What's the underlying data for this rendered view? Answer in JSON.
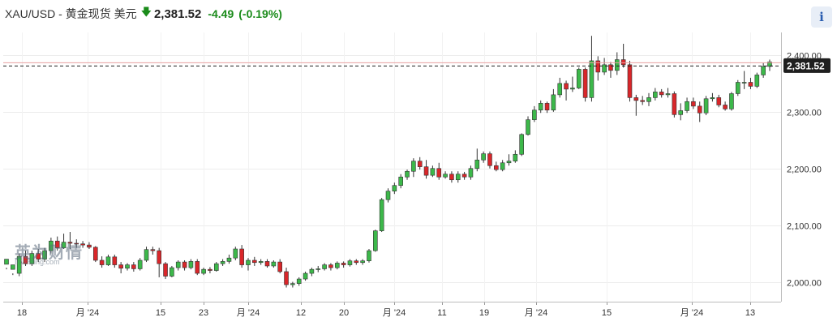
{
  "header": {
    "symbol": "XAU/USD - 黄金现货 美元",
    "arrow": "🡇",
    "price": "2,381.52",
    "change": "-4.49",
    "change_pct": "(-0.19%)",
    "info_icon": "i"
  },
  "watermark": {
    "main": "英为财情",
    "sub": "Investing.com"
  },
  "colors": {
    "up": "#3cb84a",
    "down": "#d9262a",
    "current_line": "#e8a0a0",
    "current_label_bg": "#1f1f1f"
  },
  "chart_data": {
    "type": "candlestick",
    "y_ticks": [
      {
        "value": 2400,
        "label": "2,400.00"
      },
      {
        "value": 2300,
        "label": "2,300.00"
      },
      {
        "value": 2200,
        "label": "2,200.00"
      },
      {
        "value": 2100,
        "label": "2,100.00"
      },
      {
        "value": 2000,
        "label": "2,000.00"
      }
    ],
    "ylim": [
      1965,
      2440
    ],
    "current_price": 2381.52,
    "current_label": "2,381.52",
    "x_ticks": [
      "18",
      "月 '24",
      "15",
      "23",
      "月 '24",
      "12",
      "20",
      "月 '24",
      "11",
      "19",
      "月 '24",
      "15",
      "月 '24",
      "13"
    ],
    "grid": true,
    "candles": [
      [
        2031,
        2040,
        2025,
        2022
      ],
      [
        2022,
        2030,
        2015,
        2012
      ],
      [
        2015,
        2045,
        2050,
        2010
      ],
      [
        2045,
        2032,
        2055,
        2028
      ],
      [
        2032,
        2050,
        2055,
        2028
      ],
      [
        2050,
        2040,
        2058,
        2035
      ],
      [
        2040,
        2055,
        2060,
        2035
      ],
      [
        2055,
        2072,
        2078,
        2050
      ],
      [
        2072,
        2060,
        2080,
        2055
      ],
      [
        2060,
        2070,
        2085,
        2058
      ],
      [
        2070,
        2068,
        2088,
        2058
      ],
      [
        2068,
        2067,
        2075,
        2060
      ],
      [
        2067,
        2065,
        2072,
        2060
      ],
      [
        2065,
        2061,
        2070,
        2058
      ],
      [
        2061,
        2038,
        2063,
        2035
      ],
      [
        2038,
        2030,
        2045,
        2025
      ],
      [
        2030,
        2044,
        2048,
        2028
      ],
      [
        2044,
        2030,
        2048,
        2025
      ],
      [
        2030,
        2024,
        2035,
        2015
      ],
      [
        2024,
        2030,
        2033,
        2020
      ],
      [
        2030,
        2023,
        2035,
        2018
      ],
      [
        2023,
        2038,
        2042,
        2020
      ],
      [
        2038,
        2057,
        2062,
        2035
      ],
      [
        2057,
        2055,
        2062,
        2048
      ],
      [
        2055,
        2032,
        2060,
        2008
      ],
      [
        2032,
        2010,
        2035,
        2005
      ],
      [
        2010,
        2025,
        2028,
        2008
      ],
      [
        2025,
        2035,
        2038,
        2020
      ],
      [
        2035,
        2025,
        2038,
        2020
      ],
      [
        2025,
        2036,
        2040,
        2022
      ],
      [
        2036,
        2015,
        2040,
        2012
      ],
      [
        2015,
        2022,
        2025,
        2012
      ],
      [
        2022,
        2020,
        2026,
        2015
      ],
      [
        2020,
        2032,
        2035,
        2018
      ],
      [
        2032,
        2036,
        2040,
        2028
      ],
      [
        2036,
        2042,
        2048,
        2032
      ],
      [
        2042,
        2058,
        2062,
        2038
      ],
      [
        2058,
        2030,
        2065,
        2025
      ],
      [
        2030,
        2038,
        2042,
        2020
      ],
      [
        2038,
        2034,
        2044,
        2028
      ],
      [
        2034,
        2036,
        2040,
        2030
      ],
      [
        2036,
        2028,
        2040,
        2025
      ],
      [
        2028,
        2035,
        2038,
        2025
      ],
      [
        2035,
        2018,
        2040,
        2015
      ],
      [
        2018,
        1995,
        2025,
        1990
      ],
      [
        1995,
        1997,
        2000,
        1990
      ],
      [
        1997,
        2005,
        2008,
        1993
      ],
      [
        2005,
        2015,
        2018,
        2002
      ],
      [
        2015,
        2022,
        2025,
        2010
      ],
      [
        2022,
        2023,
        2028,
        2017
      ],
      [
        2023,
        2030,
        2033,
        2020
      ],
      [
        2030,
        2025,
        2033,
        2020
      ],
      [
        2025,
        2033,
        2036,
        2022
      ],
      [
        2033,
        2030,
        2036,
        2025
      ],
      [
        2030,
        2037,
        2040,
        2027
      ],
      [
        2037,
        2034,
        2040,
        2030
      ],
      [
        2034,
        2037,
        2040,
        2030
      ],
      [
        2037,
        2055,
        2058,
        2034
      ],
      [
        2055,
        2090,
        2092,
        2053
      ],
      [
        2090,
        2145,
        2148,
        2088
      ],
      [
        2145,
        2160,
        2165,
        2140
      ],
      [
        2160,
        2170,
        2175,
        2155
      ],
      [
        2170,
        2185,
        2190,
        2165
      ],
      [
        2185,
        2195,
        2198,
        2180
      ],
      [
        2195,
        2213,
        2218,
        2185
      ],
      [
        2213,
        2203,
        2220,
        2198
      ],
      [
        2203,
        2188,
        2215,
        2182
      ],
      [
        2188,
        2200,
        2205,
        2185
      ],
      [
        2200,
        2185,
        2210,
        2180
      ],
      [
        2185,
        2190,
        2195,
        2182
      ],
      [
        2190,
        2180,
        2195,
        2175
      ],
      [
        2180,
        2190,
        2195,
        2175
      ],
      [
        2190,
        2185,
        2194,
        2180
      ],
      [
        2185,
        2200,
        2205,
        2180
      ],
      [
        2200,
        2215,
        2235,
        2195
      ],
      [
        2215,
        2226,
        2230,
        2210
      ],
      [
        2226,
        2205,
        2230,
        2200
      ],
      [
        2205,
        2198,
        2212,
        2195
      ],
      [
        2198,
        2210,
        2215,
        2195
      ],
      [
        2210,
        2213,
        2225,
        2205
      ],
      [
        2213,
        2225,
        2232,
        2210
      ],
      [
        2225,
        2260,
        2262,
        2222
      ],
      [
        2260,
        2286,
        2292,
        2258
      ],
      [
        2286,
        2303,
        2310,
        2282
      ],
      [
        2303,
        2315,
        2320,
        2298
      ],
      [
        2315,
        2303,
        2318,
        2298
      ],
      [
        2303,
        2330,
        2340,
        2300
      ],
      [
        2330,
        2350,
        2360,
        2325
      ],
      [
        2350,
        2340,
        2355,
        2320
      ],
      [
        2340,
        2342,
        2362,
        2335
      ],
      [
        2342,
        2375,
        2378,
        2340
      ],
      [
        2375,
        2325,
        2378,
        2318
      ],
      [
        2325,
        2390,
        2434,
        2318
      ],
      [
        2390,
        2370,
        2398,
        2355
      ],
      [
        2370,
        2383,
        2395,
        2365
      ],
      [
        2383,
        2373,
        2388,
        2360
      ],
      [
        2373,
        2392,
        2405,
        2365
      ],
      [
        2392,
        2383,
        2420,
        2378
      ],
      [
        2383,
        2325,
        2390,
        2318
      ],
      [
        2325,
        2320,
        2330,
        2293
      ],
      [
        2320,
        2318,
        2328,
        2312
      ],
      [
        2318,
        2325,
        2333,
        2310
      ],
      [
        2325,
        2335,
        2342,
        2320
      ],
      [
        2335,
        2330,
        2340,
        2325
      ],
      [
        2330,
        2332,
        2342,
        2325
      ],
      [
        2332,
        2295,
        2336,
        2290
      ],
      [
        2295,
        2302,
        2315,
        2285
      ],
      [
        2302,
        2318,
        2325,
        2298
      ],
      [
        2318,
        2310,
        2325,
        2305
      ],
      [
        2310,
        2298,
        2318,
        2282
      ],
      [
        2298,
        2323,
        2328,
        2294
      ],
      [
        2323,
        2325,
        2333,
        2318
      ],
      [
        2325,
        2312,
        2330,
        2308
      ],
      [
        2312,
        2305,
        2318,
        2302
      ],
      [
        2305,
        2332,
        2335,
        2302
      ],
      [
        2332,
        2352,
        2356,
        2328
      ],
      [
        2352,
        2352,
        2372,
        2340
      ],
      [
        2352,
        2345,
        2360,
        2340
      ],
      [
        2345,
        2365,
        2369,
        2342
      ],
      [
        2365,
        2380,
        2386,
        2360
      ],
      [
        2380,
        2388,
        2392,
        2372
      ]
    ]
  }
}
